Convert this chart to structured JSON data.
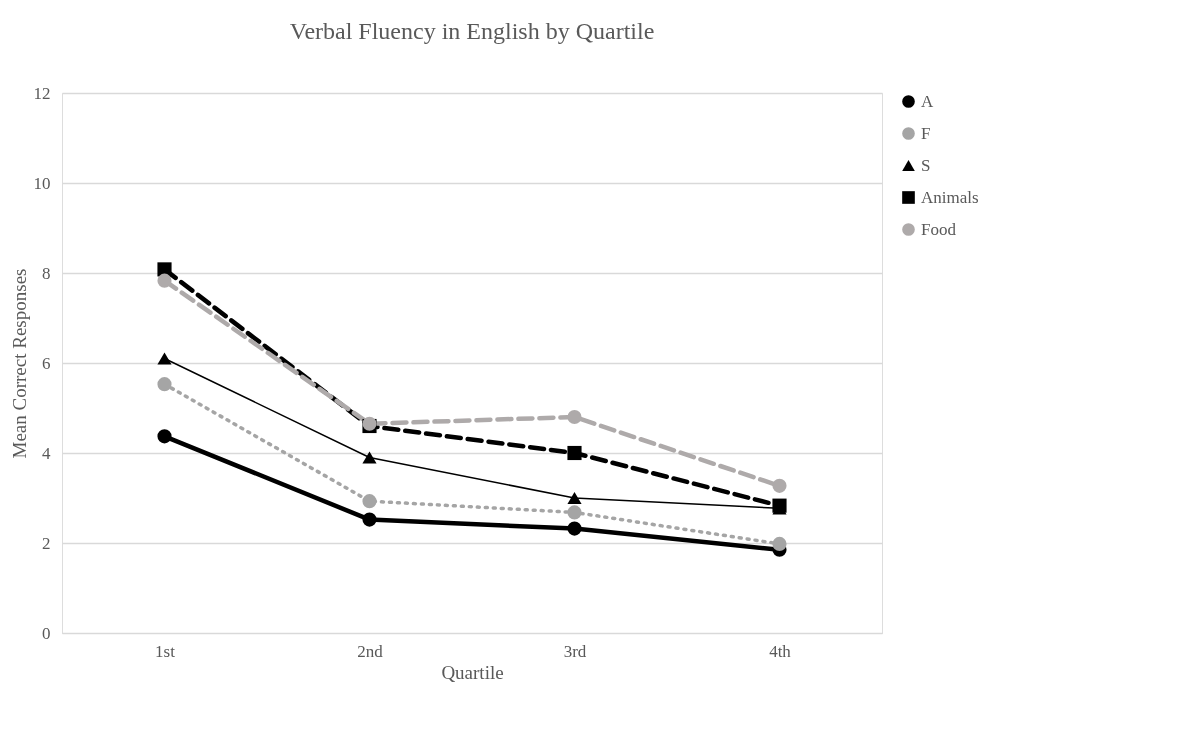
{
  "chart_data": {
    "type": "line",
    "title": "Verbal Fluency in English by Quartile",
    "xlabel": "Quartile",
    "ylabel": "Mean Correct Responses",
    "categories": [
      "1st",
      "2nd",
      "3rd",
      "4th"
    ],
    "series": [
      {
        "name": "A",
        "color": "#000000",
        "marker": "circle",
        "line_style": "solid",
        "values": [
          4.37,
          2.52,
          2.32,
          1.85
        ]
      },
      {
        "name": "F",
        "color": "#a5a5a5",
        "marker": "circle",
        "line_style": "dotted",
        "values": [
          5.53,
          2.93,
          2.68,
          1.98
        ]
      },
      {
        "name": "S",
        "color": "#000000",
        "marker": "triangle",
        "line_style": "solid",
        "values": [
          6.1,
          3.9,
          3.0,
          2.77
        ]
      },
      {
        "name": "Animals",
        "color": "#000000",
        "marker": "square",
        "line_style": "dashed",
        "values": [
          8.08,
          4.6,
          4.0,
          2.83
        ]
      },
      {
        "name": "Food",
        "color": "#aeaaaa",
        "marker": "circle",
        "line_style": "dashed",
        "values": [
          7.83,
          4.65,
          4.8,
          3.27
        ]
      }
    ],
    "ylim": [
      0,
      12
    ],
    "yticks": [
      0,
      2,
      4,
      6,
      8,
      10,
      12
    ],
    "grid": "y",
    "legend": "right"
  }
}
